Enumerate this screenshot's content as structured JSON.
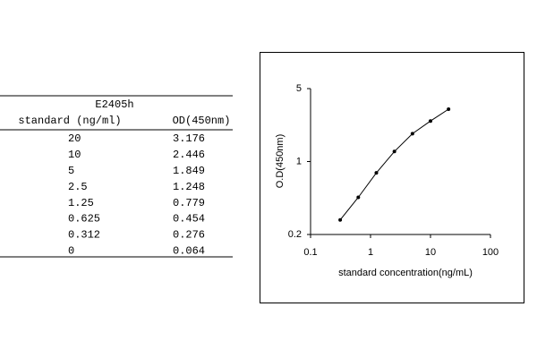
{
  "table": {
    "header": {
      "title": "E2405h",
      "columns": [
        "standard (ng/ml)",
        "OD(450nm)"
      ]
    },
    "rows": [
      [
        "20",
        "3.176"
      ],
      [
        "10",
        "2.446"
      ],
      [
        "5",
        "1.849"
      ],
      [
        "2.5",
        "1.248"
      ],
      [
        "1.25",
        "0.779"
      ],
      [
        "0.625",
        "0.454"
      ],
      [
        "0.312",
        "0.276"
      ],
      [
        "0",
        "0.064"
      ]
    ]
  },
  "chart_data": {
    "type": "line",
    "xlabel": "standard concentration(ng/mL)",
    "ylabel": "O.D(450nm)",
    "x": [
      0.312,
      0.625,
      1.25,
      2.5,
      5,
      10,
      20
    ],
    "values": [
      0.276,
      0.454,
      0.779,
      1.248,
      1.849,
      2.446,
      3.176
    ],
    "color": "#000000",
    "xscale": "log",
    "yscale": "log",
    "xlim": [
      0.1,
      100
    ],
    "xticks": [
      0.1,
      1,
      10,
      100
    ],
    "ylim": [
      0.2,
      5
    ],
    "yticks": [
      0.2,
      1,
      5
    ]
  }
}
